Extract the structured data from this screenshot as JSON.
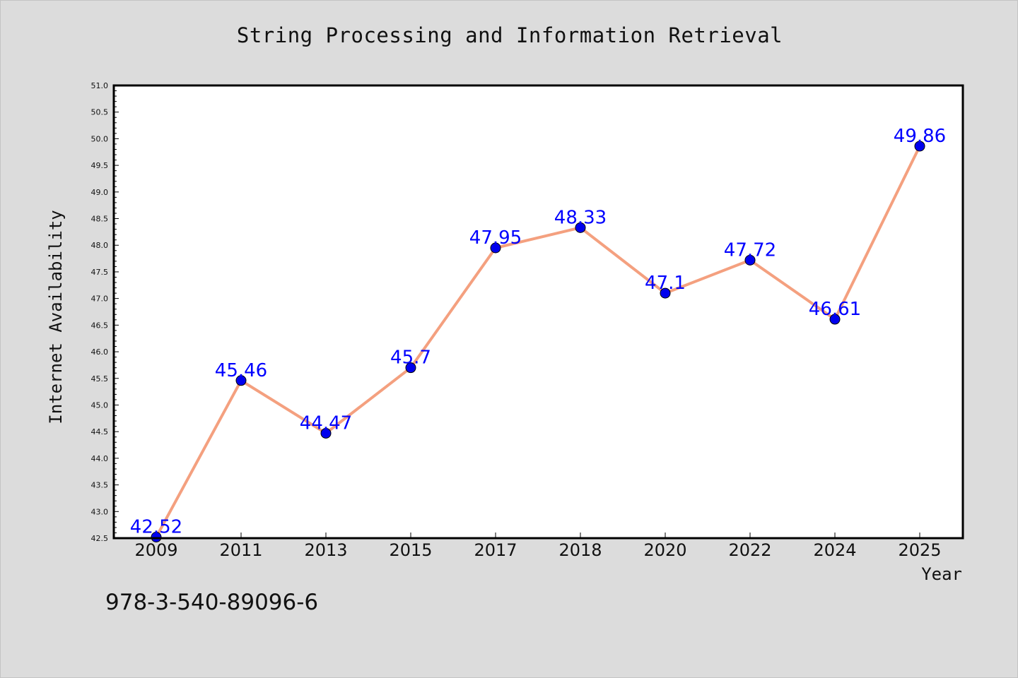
{
  "chart_data": {
    "type": "line",
    "title": "String Processing and Information Retrieval",
    "xlabel": "Year",
    "ylabel": "Internet Availability",
    "categories": [
      "2009",
      "2011",
      "2013",
      "2015",
      "2017",
      "2018",
      "2020",
      "2022",
      "2024",
      "2025"
    ],
    "series": [
      {
        "values": [
          42.52,
          45.46,
          44.47,
          45.7,
          47.95,
          48.33,
          47.1,
          47.72,
          46.61,
          49.86
        ],
        "labels": [
          "42.52",
          "45.46",
          "44.47",
          "45.7",
          "47.95",
          "48.33",
          "47.1",
          "47.72",
          "46.61",
          "49.86"
        ],
        "line_color": "#f4a07f",
        "marker_color": "#0000ee"
      }
    ],
    "ylim": [
      42.5,
      51.0
    ],
    "yticks": [
      "42.5",
      "43.0",
      "43.5",
      "44.0",
      "44.5",
      "45.0",
      "45.5",
      "46.0",
      "46.5",
      "47.0",
      "47.5",
      "48.0",
      "48.5",
      "49.0",
      "49.5",
      "50.0",
      "50.5",
      "51.0"
    ],
    "grid": false,
    "label_color": "#0000ff"
  },
  "footnote": "978-3-540-89096-6"
}
